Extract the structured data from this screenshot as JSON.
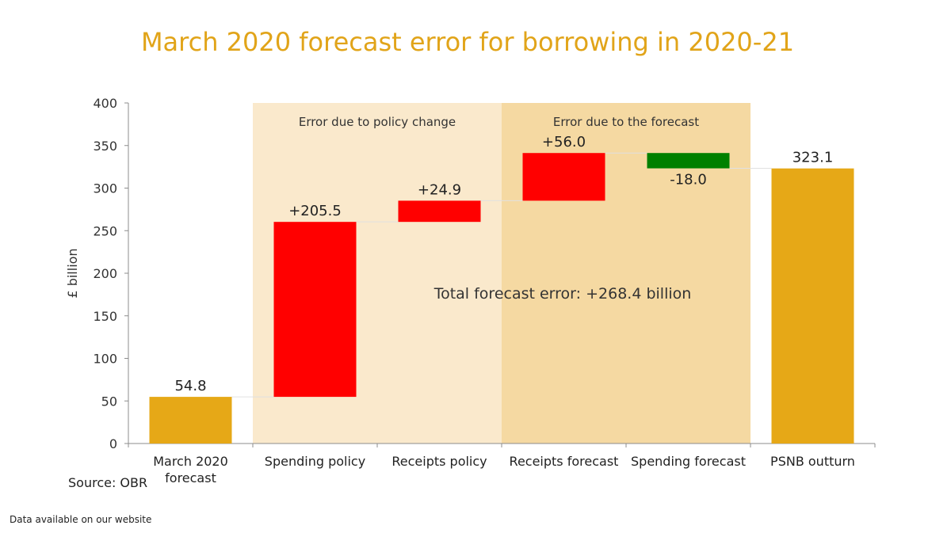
{
  "title": "March 2020 forecast error for borrowing in 2020-21",
  "source": "Source: OBR",
  "footnote": "Data available on our website",
  "chart_data": {
    "type": "waterfall",
    "title": "March 2020 forecast error for borrowing in 2020-21",
    "ylabel": "£ billion",
    "ylim": [
      0,
      400
    ],
    "yticks": [
      0,
      50,
      100,
      150,
      200,
      250,
      300,
      350,
      400
    ],
    "grid": false,
    "categories": [
      [
        "March 2020",
        "forecast"
      ],
      [
        "Spending policy"
      ],
      [
        "Receipts policy"
      ],
      [
        "Receipts forecast"
      ],
      [
        "Spending forecast"
      ],
      [
        "PSNB outturn"
      ]
    ],
    "bars": [
      {
        "kind": "total",
        "value": 54.8,
        "label": "54.8"
      },
      {
        "kind": "increase",
        "value": 205.5,
        "label": "+205.5"
      },
      {
        "kind": "increase",
        "value": 24.9,
        "label": "+24.9"
      },
      {
        "kind": "increase",
        "value": 56.0,
        "label": "+56.0"
      },
      {
        "kind": "decrease",
        "value": -18.0,
        "label": "-18.0"
      },
      {
        "kind": "total",
        "value": 323.1,
        "label": "323.1"
      }
    ],
    "bands": [
      {
        "label": "Error due to policy change",
        "from_category": 1,
        "to_category": 2
      },
      {
        "label": "Error due to the forecast",
        "from_category": 3,
        "to_category": 4
      }
    ],
    "annotation": "Total forecast error: +268.4 billion",
    "colors": {
      "total": "#e6a817",
      "increase": "#ff0000",
      "decrease": "#008000",
      "band_policy": "#fae9cc",
      "band_forecast": "#f5d9a2",
      "title": "#e1a419",
      "connector": "#e0e0e0"
    }
  }
}
